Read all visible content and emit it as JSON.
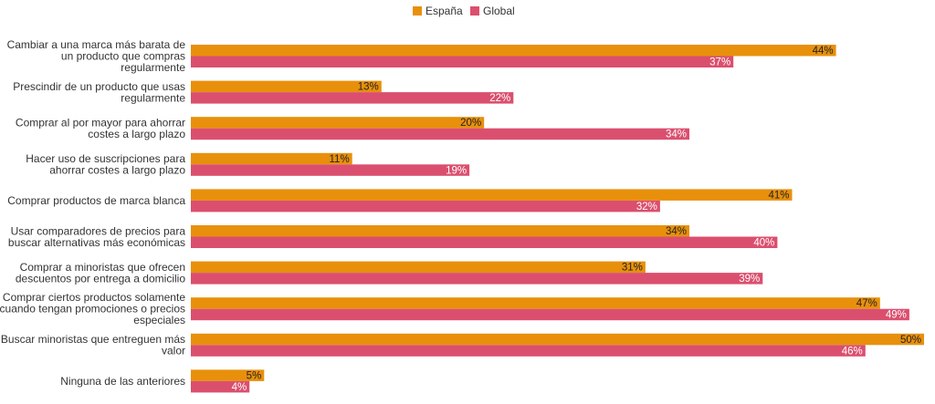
{
  "chart_data": {
    "type": "bar",
    "orientation": "horizontal",
    "title": "",
    "xlabel": "",
    "ylabel": "",
    "xlim": [
      0,
      50
    ],
    "grid": false,
    "legend": "top-center",
    "categories": [
      "Cambiar a una marca más barata de un producto que compras regularmente",
      "Prescindir de un producto que usas regularmente",
      "Comprar al por mayor para ahorrar costes a largo plazo",
      "Hacer uso de suscripciones para ahorrar costes a largo plazo",
      "Comprar productos de marca blanca",
      "Usar comparadores de precios para buscar alternativas más económicas",
      "Comprar a minoristas que ofrecen descuentos por entrega a domicilio",
      "Comprar ciertos productos solamente cuando tengan promociones o precios especiales",
      "Buscar minoristas que entreguen más valor",
      "Ninguna de las anteriores"
    ],
    "category_lines": [
      [
        "Cambiar a una marca más barata de",
        "un producto que compras",
        "regularmente"
      ],
      [
        "Prescindir de un producto que usas",
        "regularmente"
      ],
      [
        "Comprar al por mayor para ahorrar",
        "costes a largo plazo"
      ],
      [
        "Hacer uso de suscripciones para",
        "ahorrar costes a largo plazo"
      ],
      [
        "Comprar productos de marca blanca"
      ],
      [
        "Usar comparadores de precios para",
        "buscar alternativas más económicas"
      ],
      [
        "Comprar a minoristas que ofrecen",
        "descuentos por entrega a domicilio"
      ],
      [
        "Comprar ciertos productos solamente",
        "cuando tengan promociones o precios",
        "especiales"
      ],
      [
        "Buscar minoristas que entreguen más",
        "valor"
      ],
      [
        "Ninguna de las anteriores"
      ]
    ],
    "series": [
      {
        "name": "España",
        "color": "#E8900C",
        "label_color": "#222222",
        "values": [
          44,
          13,
          20,
          11,
          41,
          34,
          31,
          47,
          50,
          5
        ]
      },
      {
        "name": "Global",
        "color": "#DB4F6E",
        "label_color": "#ffffff",
        "values": [
          37,
          22,
          34,
          19,
          32,
          40,
          39,
          49,
          46,
          4
        ]
      }
    ],
    "value_suffix": "%"
  }
}
